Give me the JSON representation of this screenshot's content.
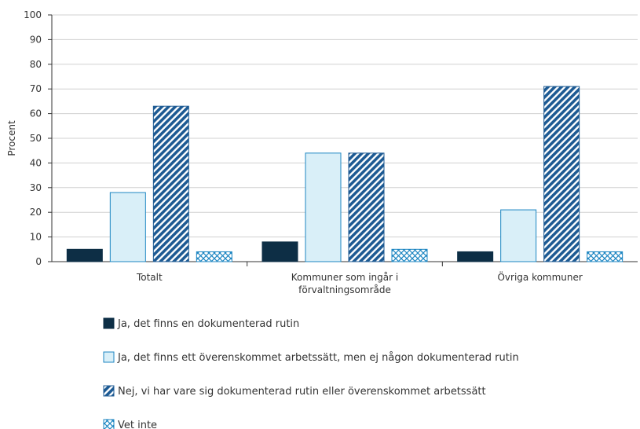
{
  "chart_data": {
    "type": "bar",
    "categories": [
      [
        "Totalt"
      ],
      [
        "Kommuner som ingår i",
        "förvaltningsområde"
      ],
      [
        "Övriga kommuner"
      ]
    ],
    "series": [
      {
        "name": "Ja, det finns en dokumenterad rutin",
        "values": [
          5,
          8,
          4
        ],
        "style": "solid",
        "color": "#0d2e45"
      },
      {
        "name": "Ja, det finns ett överenskommet arbetssätt, men ej någon dokumenterad rutin",
        "values": [
          28,
          44,
          21
        ],
        "style": "light",
        "color": "#d9eff8",
        "stroke": "#1d86c2"
      },
      {
        "name": "Nej, vi har vare sig dokumenterad rutin eller överenskommet arbetssätt",
        "values": [
          63,
          44,
          71
        ],
        "style": "diagonal",
        "color": "#1d5a93"
      },
      {
        "name": "Vet inte",
        "values": [
          4,
          5,
          4
        ],
        "style": "crosshatch",
        "color": "#1d86c2"
      }
    ],
    "ylabel": "Procent",
    "xlabel": "",
    "ylim": [
      0,
      100
    ],
    "yticks": [
      0,
      10,
      20,
      30,
      40,
      50,
      60,
      70,
      80,
      90,
      100
    ],
    "grid": true,
    "legend": "bottom"
  }
}
